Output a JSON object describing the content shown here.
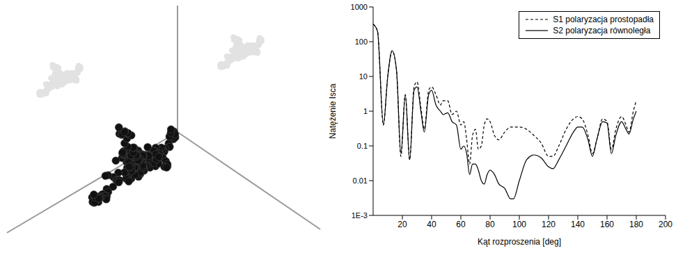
{
  "chart_data": {
    "type": "line",
    "x_label": "Kąt rozproszenia [deg]",
    "y_label": "Natężenie Isca",
    "log": "y",
    "legend": "upper right",
    "xlim": [
      0,
      200
    ],
    "xticks": [
      20,
      40,
      60,
      80,
      100,
      120,
      140,
      160,
      180,
      200
    ],
    "ylim": [
      0.001,
      1000
    ],
    "yticks": [
      {
        "value": 0.001,
        "label": "1E-3"
      },
      0.01,
      0.1,
      1,
      10,
      100,
      1000
    ],
    "x": [
      0,
      3,
      7,
      10,
      13,
      16,
      19,
      22,
      25,
      28,
      30,
      33,
      35,
      38,
      40,
      43,
      46,
      48,
      51,
      54,
      57,
      60,
      62,
      64,
      66,
      68,
      70,
      72,
      74,
      76,
      78,
      80,
      83,
      86,
      90,
      94,
      96,
      100,
      105,
      110,
      115,
      120,
      123,
      127,
      132,
      137,
      140,
      143,
      147,
      150,
      153,
      157,
      160,
      163,
      166,
      170,
      173,
      175,
      178,
      180
    ],
    "series": [
      {
        "name": "S1 polaryzacja prostopadła",
        "color": "#000000",
        "line_style": "dashed",
        "values": [
          320,
          200,
          0.4,
          10,
          55,
          15,
          0.05,
          3,
          0.04,
          5,
          7,
          1,
          0.3,
          4,
          5,
          3,
          1.5,
          2,
          2,
          0.8,
          1,
          0.4,
          0.5,
          0.15,
          0.03,
          0.2,
          0.3,
          0.08,
          0.1,
          0.4,
          0.6,
          0.5,
          0.2,
          0.15,
          0.25,
          0.35,
          0.35,
          0.35,
          0.3,
          0.2,
          0.12,
          0.05,
          0.05,
          0.1,
          0.3,
          0.6,
          0.7,
          0.6,
          0.2,
          0.06,
          0.15,
          0.6,
          0.5,
          0.08,
          0.3,
          0.7,
          0.4,
          0.25,
          1,
          2
        ]
      },
      {
        "name": "S2 polaryzacja równoległa",
        "color": "#000000",
        "line_style": "solid",
        "values": [
          320,
          200,
          0.4,
          10,
          55,
          15,
          0.06,
          3,
          0.04,
          4,
          5,
          0.8,
          0.25,
          3,
          4,
          1.5,
          1,
          0.8,
          0.9,
          0.5,
          0.4,
          0.08,
          0.1,
          0.06,
          0.015,
          0.03,
          0.03,
          0.02,
          0.01,
          0.008,
          0.015,
          0.02,
          0.015,
          0.008,
          0.006,
          0.003,
          0.003,
          0.01,
          0.04,
          0.055,
          0.045,
          0.025,
          0.022,
          0.04,
          0.1,
          0.25,
          0.35,
          0.35,
          0.15,
          0.05,
          0.15,
          0.5,
          0.45,
          0.06,
          0.2,
          0.5,
          0.3,
          0.22,
          0.6,
          1
        ]
      }
    ]
  }
}
